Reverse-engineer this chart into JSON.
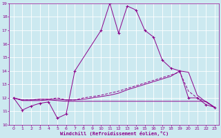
{
  "xlabel": "Windchill (Refroidissement éolien,°C)",
  "xlim": [
    -0.5,
    23.5
  ],
  "ylim": [
    10,
    19
  ],
  "xticks": [
    0,
    1,
    2,
    3,
    4,
    5,
    6,
    7,
    8,
    9,
    10,
    11,
    12,
    13,
    14,
    15,
    16,
    17,
    18,
    19,
    20,
    21,
    22,
    23
  ],
  "yticks": [
    10,
    11,
    12,
    13,
    14,
    15,
    16,
    17,
    18,
    19
  ],
  "bg_color": "#cce9f0",
  "line_color": "#8b008b",
  "grid_color": "#ffffff",
  "line1_x": [
    0,
    1,
    2,
    3,
    4,
    5,
    6,
    7,
    10,
    11,
    12,
    13,
    14,
    15,
    16,
    17,
    18,
    19,
    20,
    21,
    22,
    23
  ],
  "line1_y": [
    12.0,
    11.1,
    11.4,
    11.6,
    11.7,
    10.5,
    10.8,
    14.0,
    17.0,
    19.0,
    16.8,
    18.8,
    18.5,
    17.0,
    16.5,
    14.8,
    14.2,
    14.0,
    12.0,
    12.0,
    11.5,
    11.3
  ],
  "line2_x": [
    0,
    1,
    2,
    3,
    4,
    5,
    6,
    7,
    8,
    9,
    10,
    11,
    12,
    13,
    14,
    15,
    16,
    17,
    18,
    19,
    20,
    21,
    22,
    23
  ],
  "line2_y": [
    12.0,
    11.8,
    11.8,
    11.8,
    11.85,
    11.8,
    11.75,
    11.75,
    11.75,
    11.75,
    11.75,
    11.75,
    11.75,
    11.75,
    11.75,
    11.75,
    11.75,
    11.75,
    11.75,
    11.75,
    11.75,
    11.75,
    11.75,
    11.3
  ],
  "line3_x": [
    0,
    1,
    2,
    3,
    4,
    5,
    6,
    7,
    8,
    9,
    10,
    11,
    12,
    13,
    14,
    15,
    16,
    17,
    18,
    19,
    20,
    21,
    22,
    23
  ],
  "line3_y": [
    12.0,
    11.85,
    11.85,
    11.9,
    11.9,
    12.0,
    11.85,
    11.85,
    12.0,
    12.1,
    12.2,
    12.35,
    12.5,
    12.7,
    12.9,
    13.1,
    13.3,
    13.5,
    13.7,
    13.9,
    12.5,
    12.0,
    11.7,
    11.3
  ],
  "line4_x": [
    0,
    1,
    2,
    3,
    4,
    5,
    6,
    7,
    8,
    9,
    10,
    11,
    12,
    13,
    14,
    15,
    16,
    17,
    18,
    19,
    20,
    21,
    22,
    23
  ],
  "line4_y": [
    12.0,
    11.85,
    11.85,
    11.9,
    11.9,
    11.9,
    11.85,
    11.85,
    11.9,
    12.0,
    12.1,
    12.2,
    12.35,
    12.6,
    12.8,
    13.0,
    13.2,
    13.4,
    13.6,
    14.0,
    13.9,
    12.2,
    11.7,
    11.3
  ]
}
